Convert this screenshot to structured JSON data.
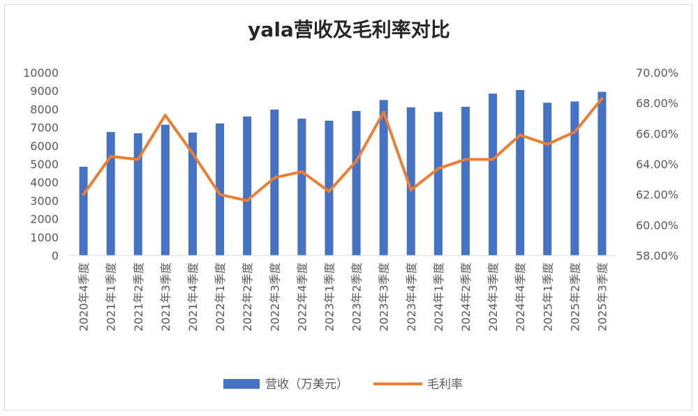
{
  "chart_data": {
    "type": "bar+line",
    "title": "yala营收及毛利率对比",
    "categories": [
      "2020年4季度",
      "2021年1季度",
      "2021年2季度",
      "2021年3季度",
      "2021年4季度",
      "2022年1季度",
      "2022年2季度",
      "2022年3季度",
      "2022年4季度",
      "2023年1季度",
      "2023年2季度",
      "2023年3季度",
      "2023年4季度",
      "2024年1季度",
      "2024年2季度",
      "2024年3季度",
      "2024年4季度",
      "2025年1季度",
      "2025年2季度",
      "2025年3季度"
    ],
    "series": [
      {
        "name": "营收（万美元）",
        "type": "bar",
        "axis": "left",
        "color": "#4472c4",
        "values": [
          4850,
          6750,
          6680,
          7150,
          6720,
          7220,
          7600,
          7980,
          7480,
          7370,
          7900,
          8500,
          8100,
          7850,
          8130,
          8850,
          9050,
          8350,
          8420,
          8950
        ]
      },
      {
        "name": "毛利率",
        "type": "line",
        "axis": "right",
        "color": "#ed7d31",
        "values": [
          0.62,
          0.645,
          0.643,
          0.672,
          0.647,
          0.62,
          0.616,
          0.631,
          0.635,
          0.622,
          0.642,
          0.674,
          0.623,
          0.637,
          0.643,
          0.643,
          0.659,
          0.653,
          0.661,
          0.683
        ]
      }
    ],
    "y_left": {
      "min": 0,
      "max": 10000,
      "step": 1000,
      "ticks": [
        "0",
        "1000",
        "2000",
        "3000",
        "4000",
        "5000",
        "6000",
        "7000",
        "8000",
        "9000",
        "10000"
      ]
    },
    "y_right": {
      "min": 0.58,
      "max": 0.7,
      "step": 0.02,
      "ticks": [
        "58.00%",
        "60.00%",
        "62.00%",
        "64.00%",
        "66.00%",
        "68.00%",
        "70.00%"
      ]
    },
    "grid": false,
    "legend_position": "bottom"
  }
}
